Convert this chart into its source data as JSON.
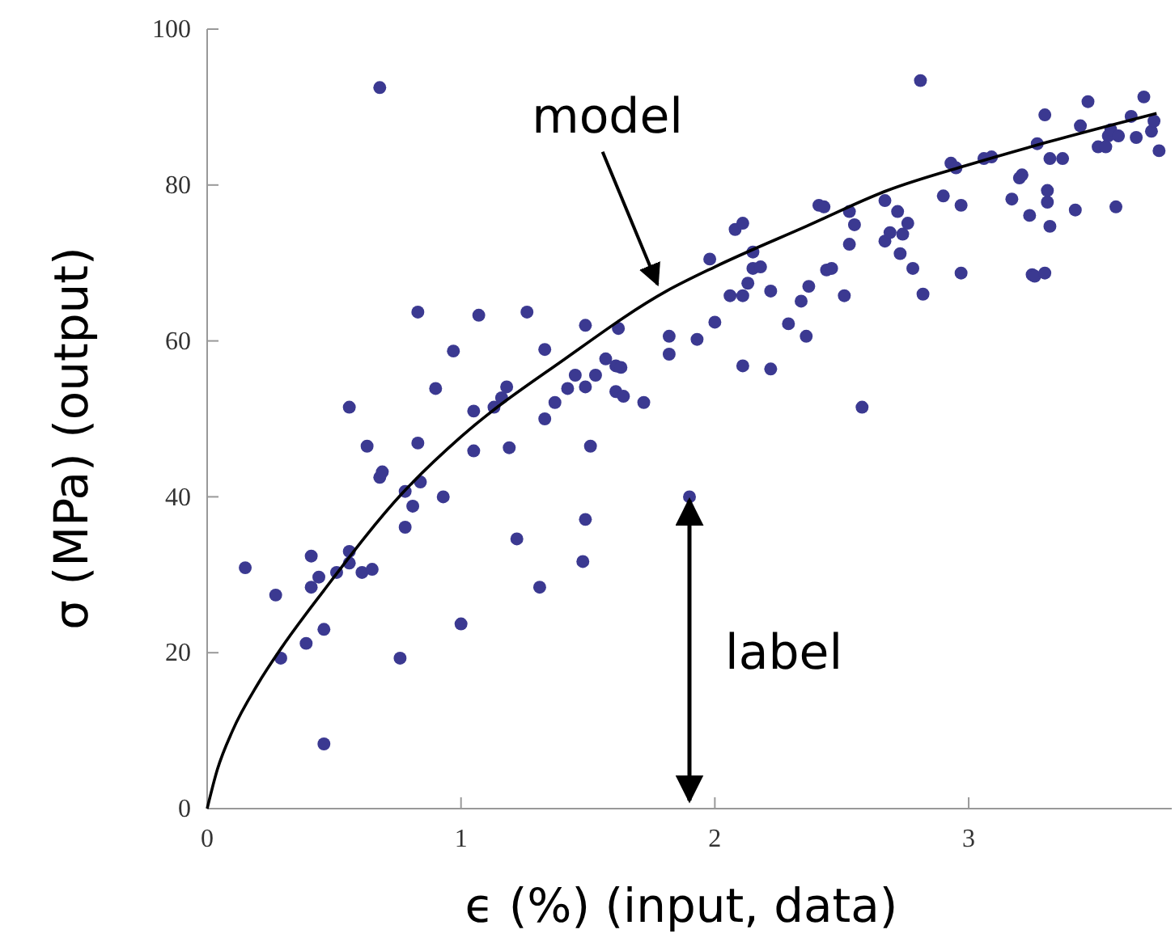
{
  "chart_data": {
    "type": "scatter",
    "xlabel": "ϵ (%) (input, data)",
    "ylabel": "σ (MPa)  (output)",
    "xlim": [
      0,
      3.8
    ],
    "ylim": [
      0,
      100
    ],
    "xticks": [
      0,
      1,
      2,
      3
    ],
    "yticks": [
      0,
      20,
      40,
      60,
      80,
      100
    ],
    "grid": false,
    "annotations": [
      {
        "text": "model",
        "x": 1.8,
        "y": 66
      },
      {
        "text": "label",
        "x": 1.9,
        "y": 40
      }
    ],
    "series": [
      {
        "color": "#3b3991",
        "marker": "circle",
        "x": [
          0.15,
          0.27,
          0.29,
          0.39,
          0.41,
          0.41,
          0.44,
          0.46,
          0.46,
          0.51,
          0.56,
          0.56,
          0.56,
          0.61,
          0.63,
          0.65,
          0.68,
          0.68,
          0.69,
          0.76,
          0.78,
          0.78,
          0.81,
          0.83,
          0.83,
          0.84,
          0.9,
          0.93,
          0.97,
          1.0,
          1.05,
          1.05,
          1.07,
          1.13,
          1.16,
          1.18,
          1.19,
          1.22,
          1.26,
          1.31,
          1.33,
          1.33,
          1.37,
          1.42,
          1.45,
          1.48,
          1.49,
          1.49,
          1.49,
          1.51,
          1.53,
          1.57,
          1.61,
          1.61,
          1.62,
          1.63,
          1.64,
          1.72,
          1.82,
          1.82,
          1.9,
          1.93,
          1.98,
          2.0,
          2.06,
          2.08,
          2.11,
          2.11,
          2.11,
          2.13,
          2.15,
          2.15,
          2.18,
          2.22,
          2.22,
          2.29,
          2.34,
          2.36,
          2.37,
          2.41,
          2.43,
          2.44,
          2.46,
          2.51,
          2.53,
          2.53,
          2.55,
          2.58,
          2.67,
          2.67,
          2.69,
          2.72,
          2.73,
          2.74,
          2.76,
          2.78,
          2.81,
          2.82,
          2.9,
          2.93,
          2.95,
          2.97,
          2.97,
          3.06,
          3.09,
          3.17,
          3.2,
          3.21,
          3.24,
          3.25,
          3.26,
          3.27,
          3.3,
          3.3,
          3.31,
          3.31,
          3.32,
          3.32,
          3.37,
          3.42,
          3.44,
          3.47,
          3.51,
          3.54,
          3.55,
          3.56,
          3.58,
          3.59,
          3.64,
          3.66,
          3.69,
          3.72,
          3.73,
          3.75
        ],
        "values": [
          30.9,
          27.4,
          19.3,
          21.2,
          32.4,
          28.4,
          29.7,
          23.0,
          8.3,
          30.3,
          51.5,
          33.0,
          31.5,
          30.3,
          46.5,
          30.7,
          92.5,
          42.5,
          43.2,
          19.3,
          40.7,
          36.1,
          38.8,
          63.7,
          46.9,
          41.9,
          53.9,
          40.0,
          58.7,
          23.7,
          51.0,
          45.9,
          63.3,
          51.5,
          52.7,
          54.1,
          46.3,
          34.6,
          63.7,
          28.4,
          58.9,
          50.0,
          52.1,
          53.9,
          55.6,
          31.7,
          37.1,
          54.1,
          62.0,
          46.5,
          55.6,
          57.7,
          56.8,
          53.5,
          61.6,
          56.6,
          52.9,
          52.1,
          60.6,
          58.3,
          40.0,
          60.2,
          70.5,
          62.4,
          65.8,
          74.3,
          75.1,
          56.8,
          65.8,
          67.4,
          71.4,
          69.3,
          69.5,
          56.4,
          66.4,
          62.2,
          65.1,
          60.6,
          67.0,
          77.4,
          77.2,
          69.1,
          69.3,
          65.8,
          76.6,
          72.4,
          74.9,
          51.5,
          78.0,
          72.8,
          73.9,
          76.6,
          71.2,
          73.7,
          75.1,
          69.3,
          93.4,
          66.0,
          78.6,
          82.8,
          82.2,
          77.4,
          68.7,
          83.4,
          83.6,
          78.2,
          80.9,
          81.3,
          76.1,
          68.5,
          68.3,
          85.3,
          68.7,
          89.0,
          79.3,
          77.8,
          74.7,
          83.4,
          83.4,
          76.8,
          87.6,
          90.7,
          84.9,
          84.9,
          86.3,
          87.1,
          77.2,
          86.3,
          88.8,
          86.1,
          91.3,
          86.9,
          88.2,
          84.4
        ]
      },
      {
        "type": "line",
        "color": "#000000",
        "marker": "none",
        "line_style": "solid",
        "x": [
          0,
          0.04,
          0.1,
          0.2,
          0.29,
          0.46,
          0.77,
          1,
          1.41,
          1.81,
          2,
          2.36,
          2.68,
          3,
          3.31,
          3.74
        ],
        "values": [
          0,
          5,
          10,
          16,
          20.5,
          28,
          40.5,
          47.7,
          57.7,
          66.4,
          69.5,
          74.7,
          79.3,
          82.6,
          85.5,
          89.2
        ]
      }
    ]
  }
}
